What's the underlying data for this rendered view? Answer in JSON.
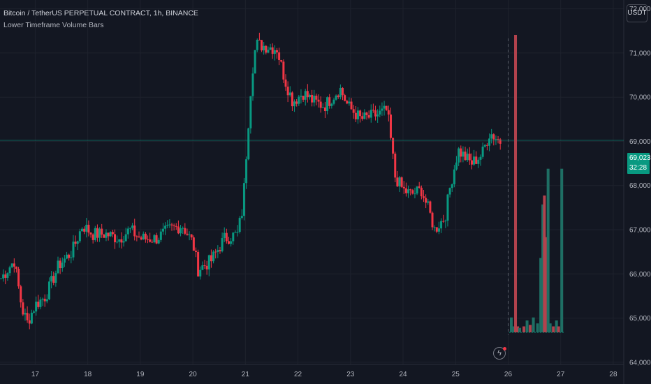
{
  "legend": {
    "title": "Bitcoin / TetherUS PERPETUAL CONTRACT, 1h, BINANCE",
    "indicator": "Lower Timeframe Volume Bars"
  },
  "unit_button": "USDT",
  "current_price": {
    "value": "69,023.5",
    "countdown": "32:28"
  },
  "colors": {
    "bg": "#131722",
    "up": "#089981",
    "down": "#f23645",
    "grid": "#1e222d",
    "vol_up": "#1e6f64",
    "vol_down": "#b2424d"
  },
  "chart_data": {
    "type": "candlestick",
    "x_ticks": [
      "17",
      "18",
      "19",
      "20",
      "21",
      "22",
      "23",
      "24",
      "25",
      "26",
      "27",
      "28"
    ],
    "y_ticks": [
      "72,000.0",
      "71,000.0",
      "70,000.0",
      "69,000.0",
      "68,000.0",
      "67,000.0",
      "66,000.0",
      "65,000.0",
      "64,000.0"
    ],
    "y_values": [
      72000,
      71000,
      70000,
      69000,
      68000,
      67000,
      66000,
      65000,
      64000
    ],
    "ylim": [
      63950,
      72200
    ],
    "xlim": [
      16.33,
      28.2
    ],
    "anchors": [
      [
        16.35,
        65900
      ],
      [
        16.6,
        66300
      ],
      [
        16.75,
        65200
      ],
      [
        16.85,
        64900
      ],
      [
        17.0,
        65300
      ],
      [
        17.2,
        65500
      ],
      [
        17.45,
        66200
      ],
      [
        17.7,
        66500
      ],
      [
        17.9,
        67100
      ],
      [
        18.1,
        66900
      ],
      [
        18.35,
        66900
      ],
      [
        18.6,
        66800
      ],
      [
        18.8,
        67000
      ],
      [
        19.0,
        66800
      ],
      [
        19.3,
        66800
      ],
      [
        19.55,
        67000
      ],
      [
        19.8,
        67100
      ],
      [
        20.0,
        66700
      ],
      [
        20.1,
        66100
      ],
      [
        20.35,
        66300
      ],
      [
        20.6,
        66800
      ],
      [
        20.85,
        66900
      ],
      [
        20.95,
        67500
      ],
      [
        21.05,
        69300
      ],
      [
        21.12,
        70500
      ],
      [
        21.2,
        71200
      ],
      [
        21.4,
        71150
      ],
      [
        21.6,
        71100
      ],
      [
        21.75,
        70400
      ],
      [
        21.9,
        69900
      ],
      [
        22.1,
        70100
      ],
      [
        22.3,
        69900
      ],
      [
        22.5,
        69800
      ],
      [
        22.8,
        70200
      ],
      [
        22.95,
        69800
      ],
      [
        23.2,
        69500
      ],
      [
        23.5,
        69600
      ],
      [
        23.7,
        69700
      ],
      [
        23.85,
        68200
      ],
      [
        24.0,
        67900
      ],
      [
        24.15,
        67800
      ],
      [
        24.35,
        67900
      ],
      [
        24.5,
        67400
      ],
      [
        24.6,
        67000
      ],
      [
        24.8,
        67300
      ],
      [
        24.9,
        68000
      ],
      [
        25.05,
        68800
      ],
      [
        25.3,
        68500
      ],
      [
        25.5,
        68700
      ],
      [
        25.65,
        69200
      ],
      [
        25.85,
        69000
      ]
    ],
    "current_price": 69023.5,
    "volume": {
      "type": "bar",
      "bars": [
        {
          "x": 26.06,
          "v": 0.05,
          "dir": "up"
        },
        {
          "x": 26.1,
          "v": 0.02,
          "dir": "up"
        },
        {
          "x": 26.14,
          "v": 1.0,
          "dir": "down"
        },
        {
          "x": 26.18,
          "v": 0.02,
          "dir": "down"
        },
        {
          "x": 26.22,
          "v": 0.015,
          "dir": "up"
        },
        {
          "x": 26.3,
          "v": 0.02,
          "dir": "down"
        },
        {
          "x": 26.36,
          "v": 0.04,
          "dir": "up"
        },
        {
          "x": 26.42,
          "v": 0.025,
          "dir": "down"
        },
        {
          "x": 26.48,
          "v": 0.05,
          "dir": "up"
        },
        {
          "x": 26.56,
          "v": 0.03,
          "dir": "up"
        },
        {
          "x": 26.62,
          "v": 0.25,
          "dir": "up"
        },
        {
          "x": 26.66,
          "v": 0.43,
          "dir": "up"
        },
        {
          "x": 26.69,
          "v": 0.46,
          "dir": "down"
        },
        {
          "x": 26.73,
          "v": 0.32,
          "dir": "down"
        },
        {
          "x": 26.76,
          "v": 0.55,
          "dir": "up"
        },
        {
          "x": 26.8,
          "v": 0.03,
          "dir": "up"
        },
        {
          "x": 26.86,
          "v": 0.02,
          "dir": "down"
        },
        {
          "x": 26.92,
          "v": 0.04,
          "dir": "up"
        },
        {
          "x": 26.96,
          "v": 0.02,
          "dir": "down"
        },
        {
          "x": 27.02,
          "v": 0.55,
          "dir": "up"
        }
      ]
    }
  }
}
